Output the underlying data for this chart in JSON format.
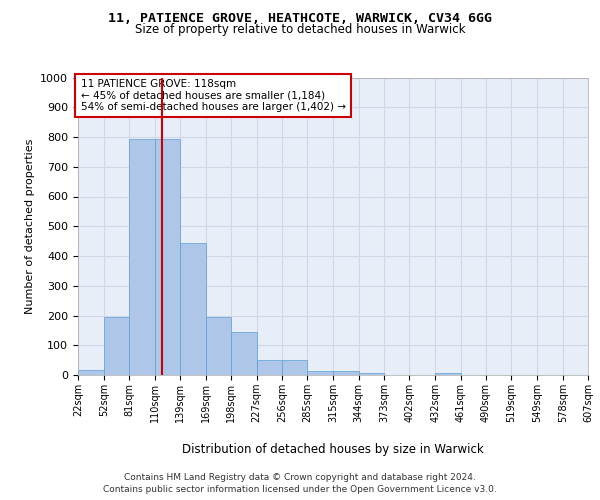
{
  "title1": "11, PATIENCE GROVE, HEATHCOTE, WARWICK, CV34 6GG",
  "title2": "Size of property relative to detached houses in Warwick",
  "xlabel": "Distribution of detached houses by size in Warwick",
  "ylabel": "Number of detached properties",
  "footer1": "Contains HM Land Registry data © Crown copyright and database right 2024.",
  "footer2": "Contains public sector information licensed under the Open Government Licence v3.0.",
  "annotation_title": "11 PATIENCE GROVE: 118sqm",
  "annotation_line1": "← 45% of detached houses are smaller (1,184)",
  "annotation_line2": "54% of semi-detached houses are larger (1,402) →",
  "property_size": 118,
  "bin_edges": [
    22,
    52,
    81,
    110,
    139,
    169,
    198,
    227,
    256,
    285,
    315,
    344,
    373,
    402,
    432,
    461,
    490,
    519,
    549,
    578,
    607
  ],
  "bar_heights": [
    18,
    196,
    793,
    793,
    444,
    196,
    144,
    49,
    49,
    14,
    14,
    8,
    0,
    0,
    8,
    0,
    0,
    0,
    0,
    0
  ],
  "bar_color": "#aec6e8",
  "bar_edge_color": "#5a9fd4",
  "grid_color": "#d0d8e8",
  "vline_color": "#cc0000",
  "annotation_box_color": "#cc0000",
  "background_color": "#e8eef8",
  "ylim": [
    0,
    1000
  ],
  "yticks": [
    0,
    100,
    200,
    300,
    400,
    500,
    600,
    700,
    800,
    900,
    1000
  ]
}
